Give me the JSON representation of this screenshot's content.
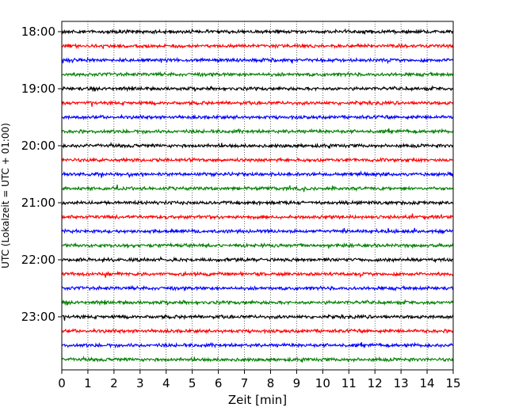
{
  "chart_data": {
    "type": "line",
    "title": "",
    "xlabel": "Zeit  [min]",
    "ylabel": "UTC (Lokalzeit = UTC + 01:00)",
    "xlim": [
      0,
      15
    ],
    "x_ticks": [
      "0",
      "1",
      "2",
      "3",
      "4",
      "5",
      "6",
      "7",
      "8",
      "9",
      "10",
      "11",
      "12",
      "13",
      "14",
      "15"
    ],
    "y_tick_labels": [
      "18:00",
      "19:00",
      "20:00",
      "21:00",
      "22:00",
      "23:00"
    ],
    "trace_start_times": [
      "18:00",
      "18:15",
      "18:30",
      "18:45",
      "19:00",
      "19:15",
      "19:30",
      "19:45",
      "20:00",
      "20:15",
      "20:30",
      "20:45",
      "21:00",
      "21:15",
      "21:30",
      "21:45",
      "22:00",
      "22:15",
      "22:30",
      "22:45",
      "23:00",
      "23:15",
      "23:30",
      "23:45"
    ],
    "trace_duration_min": 15,
    "trace_colors": [
      "#000000",
      "#ff0000",
      "#0000ff",
      "#008000"
    ],
    "vertical_grid": true,
    "grid_style": "dotted",
    "legend": "none"
  }
}
